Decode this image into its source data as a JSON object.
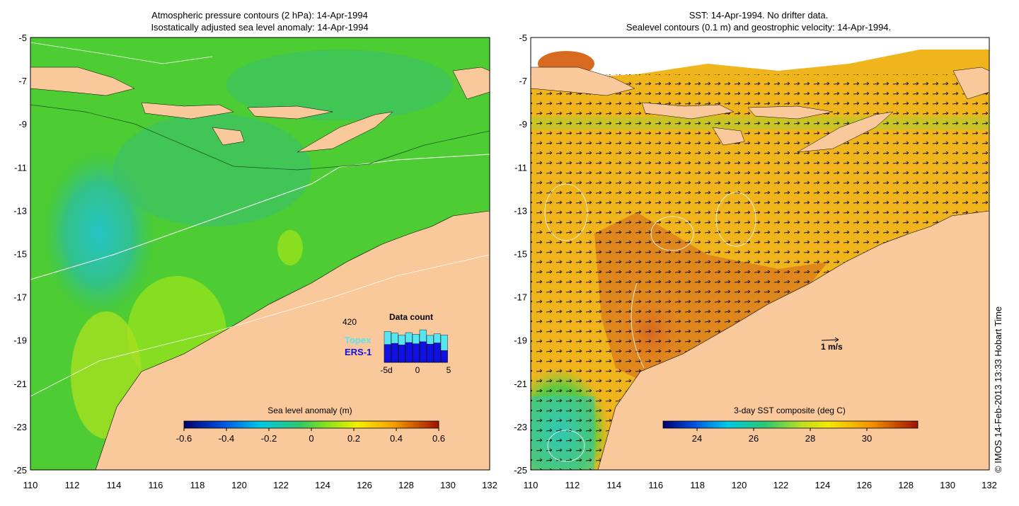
{
  "left_panel": {
    "title_line1": "Atmospheric pressure contours (2 hPa): 14-Apr-1994",
    "title_line2": "Isostatically adjusted sea level anomaly: 14-Apr-1994",
    "colorbar": {
      "label": "Sea level anomaly (m)",
      "ticks": [
        "-0.6",
        "-0.4",
        "-0.2",
        "0",
        "0.2",
        "0.4",
        "0.6"
      ]
    },
    "data_count": {
      "title": "Data count",
      "max_label": "420",
      "topex_label": "Topex",
      "ers_label": "ERS-1",
      "x_ticks": [
        "-5d",
        "0",
        "5"
      ],
      "topex_values": [
        0.78,
        0.74,
        0.69,
        0.75,
        0.71,
        0.82,
        0.68,
        0.72,
        0.69
      ],
      "ers_values": [
        0.45,
        0.48,
        0.44,
        0.5,
        0.47,
        0.52,
        0.46,
        0.49,
        0.3
      ],
      "colors": {
        "topex": "#55e6f2",
        "ers": "#1010e0"
      }
    }
  },
  "right_panel": {
    "title_line1": "SST: 14-Apr-1994. No drifter data.",
    "title_line2": "Sealevel contours (0.1 m) and geostrophic velocity: 14-Apr-1994.",
    "scale_label": "1 m/s",
    "colorbar": {
      "label": "3-day SST composite (deg C)",
      "ticks": [
        "24",
        "26",
        "28",
        "30"
      ]
    }
  },
  "axes": {
    "lat_labels": [
      "-5",
      "-7",
      "-9",
      "-11",
      "-13",
      "-15",
      "-17",
      "-19",
      "-21",
      "-23",
      "-25"
    ],
    "lon_labels": [
      "110",
      "112",
      "114",
      "116",
      "118",
      "120",
      "122",
      "124",
      "126",
      "128",
      "130",
      "132"
    ]
  },
  "copyright": "© IMOS 14-Feb-2013 13:33 Hobart Time",
  "colors": {
    "land": "#f9c89b",
    "sla_ocean": "#4dcc33",
    "sst_ocean": "#f0b41c"
  }
}
